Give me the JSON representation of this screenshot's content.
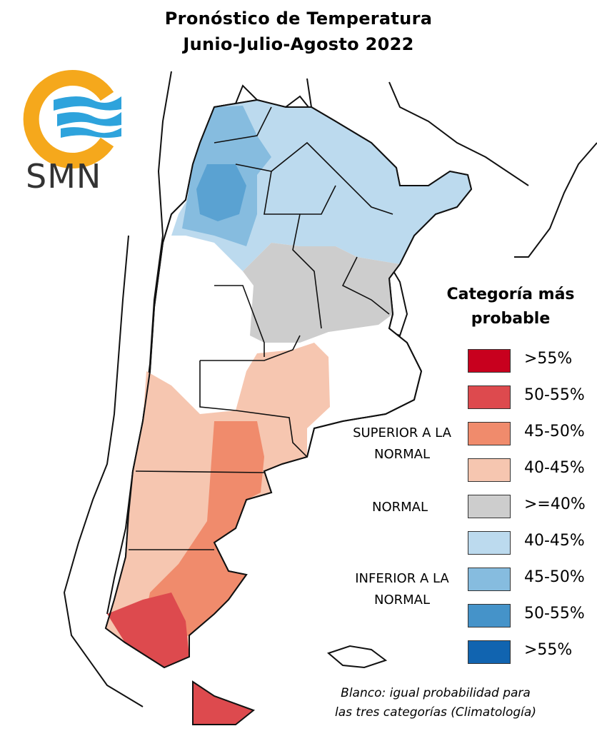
{
  "title_line1": "Pronóstico de Temperatura",
  "title_line2": "Junio-Julio-Agosto 2022",
  "logo": {
    "text": "SMN",
    "colors": {
      "ring": "#f5a81c",
      "waves": "#2ea3dc"
    }
  },
  "legend": {
    "title": "Categoría más probable",
    "groups": [
      {
        "label": "SUPERIOR A LA NORMAL",
        "items": [
          {
            "label": ">55%",
            "color": "#c8001e"
          },
          {
            "label": "50-55%",
            "color": "#dd4a4e"
          },
          {
            "label": "45-50%",
            "color": "#f08b6c"
          },
          {
            "label": "40-45%",
            "color": "#f6c6b0"
          }
        ]
      },
      {
        "label": "NORMAL",
        "items": [
          {
            "label": ">=40%",
            "color": "#cdcdcd"
          }
        ]
      },
      {
        "label": "INFERIOR A LA NORMAL",
        "items": [
          {
            "label": "40-45%",
            "color": "#bcdaee"
          },
          {
            "label": "45-50%",
            "color": "#86bcdf"
          },
          {
            "label": "50-55%",
            "color": "#4593c9"
          },
          {
            "label": ">55%",
            "color": "#1164b0"
          }
        ]
      }
    ]
  },
  "note_line1": "Blanco: igual probabilidad para",
  "note_line2": "las tres categorías (Climatología)"
}
